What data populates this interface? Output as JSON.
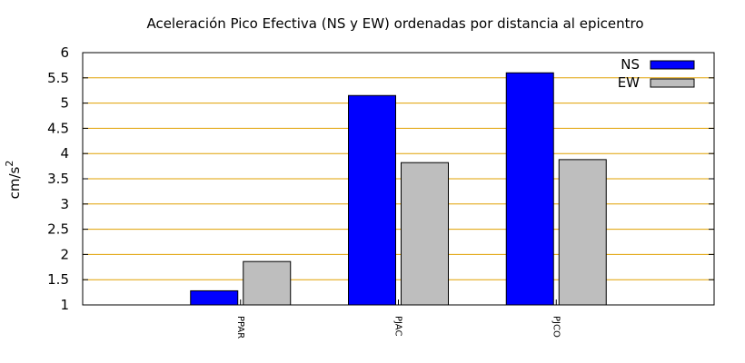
{
  "chart_data": {
    "type": "bar",
    "title": "Aceleración Pico Efectiva (NS y EW) ordenadas por distancia al epicentro",
    "ylabel_base": "cm/s",
    "ylabel_exp": "2",
    "categories": [
      "PPAR",
      "PJAC",
      "PJCO"
    ],
    "series": [
      {
        "name": "NS",
        "values": [
          1.28,
          5.15,
          5.6
        ],
        "color": "#0000ff"
      },
      {
        "name": "EW",
        "values": [
          1.86,
          3.82,
          3.88
        ],
        "color": "#bebebe"
      }
    ],
    "ylim": [
      1,
      6
    ],
    "yticks": [
      1,
      1.5,
      2,
      2.5,
      3,
      3.5,
      4,
      4.5,
      5,
      5.5,
      6
    ],
    "ytick_labels": [
      "1",
      "1.5",
      "2",
      "2.5",
      "3",
      "3.5",
      "4",
      "4.5",
      "5",
      "5.5",
      "6"
    ],
    "grid": true,
    "grid_color": "#e0a000",
    "legend_position": "top-right"
  }
}
